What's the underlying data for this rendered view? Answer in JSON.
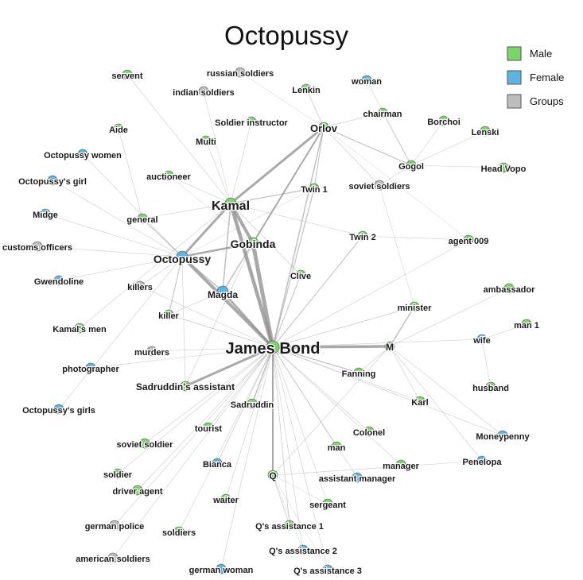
{
  "title": "Octopussy",
  "legend": [
    {
      "label": "Male",
      "color": "#7cd46a"
    },
    {
      "label": "Female",
      "color": "#5bb4e4"
    },
    {
      "label": "Groups",
      "color": "#bdbdbd"
    }
  ],
  "nodes": [
    {
      "id": "james_bond",
      "label": "James Bond",
      "type": "Male"
    },
    {
      "id": "kamal",
      "label": "Kamal",
      "type": "Male"
    },
    {
      "id": "gobinda",
      "label": "Gobinda",
      "type": "Male"
    },
    {
      "id": "octopussy",
      "label": "Octopussy",
      "type": "Female"
    },
    {
      "id": "magda",
      "label": "Magda",
      "type": "Female"
    },
    {
      "id": "orlov",
      "label": "Orlov",
      "type": "Male"
    },
    {
      "id": "m",
      "label": "M",
      "type": "Male"
    },
    {
      "id": "q",
      "label": "Q",
      "type": "Male"
    },
    {
      "id": "servent",
      "label": "servent",
      "type": "Male"
    },
    {
      "id": "russian_soldiers",
      "label": "russian soldiers",
      "type": "Groups"
    },
    {
      "id": "indian_soldiers",
      "label": "indian soldiers",
      "type": "Groups"
    },
    {
      "id": "lenkin",
      "label": "Lenkin",
      "type": "Male"
    },
    {
      "id": "woman",
      "label": "woman",
      "type": "Female"
    },
    {
      "id": "chairman",
      "label": "chairman",
      "type": "Male"
    },
    {
      "id": "borchoi",
      "label": "Borchoi",
      "type": "Male"
    },
    {
      "id": "lenski",
      "label": "Lenski",
      "type": "Male"
    },
    {
      "id": "aide",
      "label": "Aide",
      "type": "Male"
    },
    {
      "id": "multi",
      "label": "Multi",
      "type": "Male"
    },
    {
      "id": "soldier_instructor",
      "label": "Soldier instructor",
      "type": "Male"
    },
    {
      "id": "octopussy_women",
      "label": "Octopussy women",
      "type": "Female"
    },
    {
      "id": "gogol",
      "label": "Gogol",
      "type": "Male"
    },
    {
      "id": "head_vopo",
      "label": "Head Vopo",
      "type": "Male"
    },
    {
      "id": "auctioneer",
      "label": "auctioneer",
      "type": "Male"
    },
    {
      "id": "octopussys_girl",
      "label": "Octopussy's girl",
      "type": "Female"
    },
    {
      "id": "twin1",
      "label": "Twin 1",
      "type": "Male"
    },
    {
      "id": "soviet_soldiers",
      "label": "soviet soldiers",
      "type": "Groups"
    },
    {
      "id": "midge",
      "label": "Midge",
      "type": "Female"
    },
    {
      "id": "general",
      "label": "general",
      "type": "Male"
    },
    {
      "id": "twin2",
      "label": "Twin 2",
      "type": "Male"
    },
    {
      "id": "agent009",
      "label": "agent 009",
      "type": "Male"
    },
    {
      "id": "customs_officers",
      "label": "customs officers",
      "type": "Groups"
    },
    {
      "id": "clive",
      "label": "Clive",
      "type": "Male"
    },
    {
      "id": "gwendoline",
      "label": "Gwendoline",
      "type": "Female"
    },
    {
      "id": "killers",
      "label": "killers",
      "type": "Groups"
    },
    {
      "id": "ambassador",
      "label": "ambassador",
      "type": "Male"
    },
    {
      "id": "minister",
      "label": "minister",
      "type": "Male"
    },
    {
      "id": "killer",
      "label": "killer",
      "type": "Male"
    },
    {
      "id": "kamals_men",
      "label": "Kamal's men",
      "type": "Male"
    },
    {
      "id": "man1",
      "label": "man 1",
      "type": "Male"
    },
    {
      "id": "wife",
      "label": "wife",
      "type": "Female"
    },
    {
      "id": "murders",
      "label": "murders",
      "type": "Groups"
    },
    {
      "id": "photographer",
      "label": "photographer",
      "type": "Female"
    },
    {
      "id": "fanning",
      "label": "Fanning",
      "type": "Male"
    },
    {
      "id": "sadruddins_assistant",
      "label": "Sadruddin's assistant",
      "type": "Male"
    },
    {
      "id": "husband",
      "label": "husband",
      "type": "Male"
    },
    {
      "id": "karl",
      "label": "Karl",
      "type": "Male"
    },
    {
      "id": "sadruddin",
      "label": "Sadruddin",
      "type": "Male"
    },
    {
      "id": "octopussys_girls",
      "label": "Octopussy's girls",
      "type": "Female"
    },
    {
      "id": "tourist",
      "label": "tourist",
      "type": "Male"
    },
    {
      "id": "colonel",
      "label": "Colonel",
      "type": "Male"
    },
    {
      "id": "moneypenny",
      "label": "Moneypenny",
      "type": "Female"
    },
    {
      "id": "soviet_soldier",
      "label": "soviet soldier",
      "type": "Male"
    },
    {
      "id": "man",
      "label": "man",
      "type": "Male"
    },
    {
      "id": "bianca",
      "label": "Bianca",
      "type": "Female"
    },
    {
      "id": "manager",
      "label": "manager",
      "type": "Male"
    },
    {
      "id": "penelopa",
      "label": "Penelopa",
      "type": "Female"
    },
    {
      "id": "soldier",
      "label": "soldier",
      "type": "Male"
    },
    {
      "id": "assistant_manager",
      "label": "assistant manager",
      "type": "Female"
    },
    {
      "id": "driver_agent",
      "label": "driver agent",
      "type": "Male"
    },
    {
      "id": "waiter",
      "label": "waiter",
      "type": "Male"
    },
    {
      "id": "sergeant",
      "label": "sergeant",
      "type": "Male"
    },
    {
      "id": "german_police",
      "label": "german police",
      "type": "Groups"
    },
    {
      "id": "qs_assistance1",
      "label": "Q's assistance 1",
      "type": "Male"
    },
    {
      "id": "soldiers",
      "label": "soldiers",
      "type": "Male"
    },
    {
      "id": "qs_assistance2",
      "label": "Q's assistance 2",
      "type": "Female"
    },
    {
      "id": "american_soldiers",
      "label": "american soldiers",
      "type": "Groups"
    },
    {
      "id": "german_woman",
      "label": "german woman",
      "type": "Female"
    },
    {
      "id": "qs_assistance3",
      "label": "Q's assistance 3",
      "type": "Female"
    }
  ]
}
